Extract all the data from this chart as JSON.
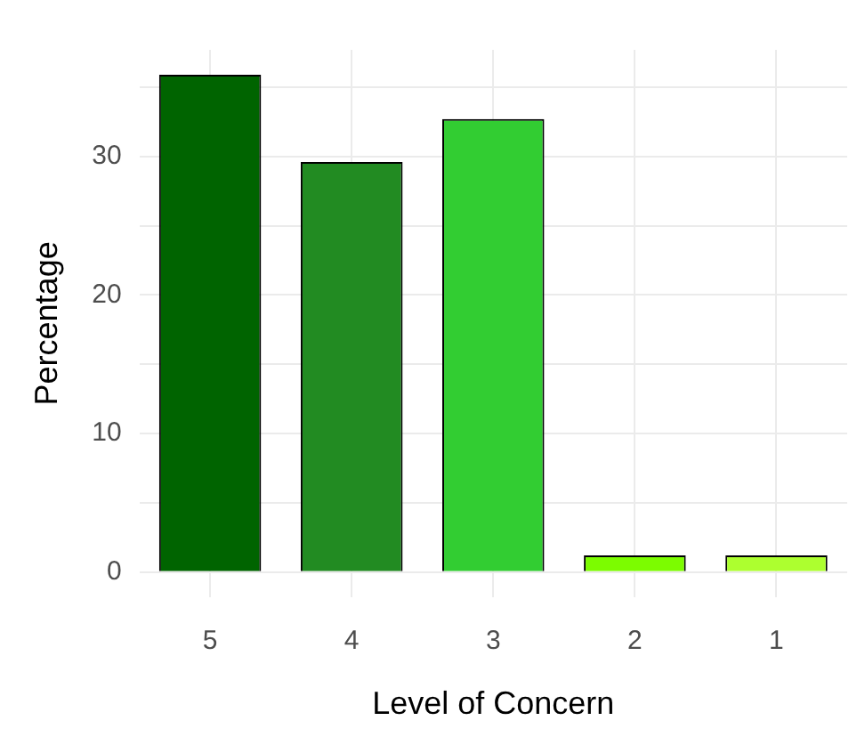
{
  "chart_data": {
    "type": "bar",
    "xlabel": "Level of Concern",
    "ylabel": "Percentage",
    "categories": [
      "5",
      "4",
      "3",
      "2",
      "1"
    ],
    "values": [
      35.9,
      29.6,
      32.7,
      1.2,
      1.2
    ],
    "colors": [
      "#006400",
      "#228b22",
      "#32cd32",
      "#7cfc00",
      "#adff2f"
    ],
    "ylim": [
      -1.8,
      37.7
    ],
    "yticks": [
      0,
      {
        "value": 5,
        "label": null
      },
      10,
      {
        "value": 15,
        "label": null
      },
      20,
      {
        "value": 25,
        "label": null
      },
      30,
      {
        "value": 35,
        "label": null
      }
    ],
    "grid": true,
    "legend": false
  }
}
